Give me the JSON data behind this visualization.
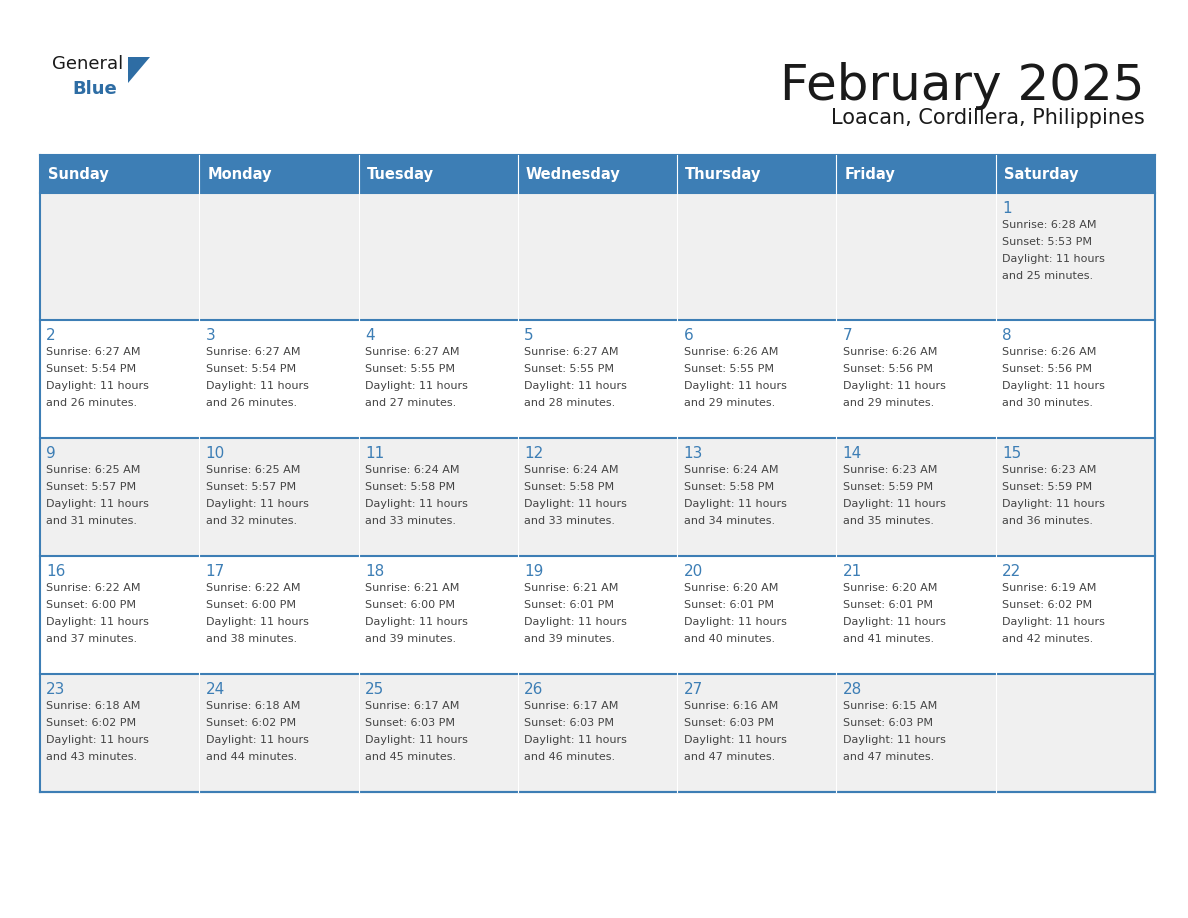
{
  "title": "February 2025",
  "subtitle": "Loacan, Cordillera, Philippines",
  "header_bg": "#3D7EB5",
  "header_text_color": "#FFFFFF",
  "cell_bg_even": "#F0F0F0",
  "cell_bg_odd": "#FFFFFF",
  "border_color": "#3D7EB5",
  "text_color": "#444444",
  "day_number_color": "#3D7EB5",
  "days_of_week": [
    "Sunday",
    "Monday",
    "Tuesday",
    "Wednesday",
    "Thursday",
    "Friday",
    "Saturday"
  ],
  "calendar_data": [
    [
      null,
      null,
      null,
      null,
      null,
      null,
      {
        "day": 1,
        "sunrise": "6:28 AM",
        "sunset": "5:53 PM",
        "daylight_hours": 11,
        "daylight_minutes": 25
      }
    ],
    [
      {
        "day": 2,
        "sunrise": "6:27 AM",
        "sunset": "5:54 PM",
        "daylight_hours": 11,
        "daylight_minutes": 26
      },
      {
        "day": 3,
        "sunrise": "6:27 AM",
        "sunset": "5:54 PM",
        "daylight_hours": 11,
        "daylight_minutes": 26
      },
      {
        "day": 4,
        "sunrise": "6:27 AM",
        "sunset": "5:55 PM",
        "daylight_hours": 11,
        "daylight_minutes": 27
      },
      {
        "day": 5,
        "sunrise": "6:27 AM",
        "sunset": "5:55 PM",
        "daylight_hours": 11,
        "daylight_minutes": 28
      },
      {
        "day": 6,
        "sunrise": "6:26 AM",
        "sunset": "5:55 PM",
        "daylight_hours": 11,
        "daylight_minutes": 29
      },
      {
        "day": 7,
        "sunrise": "6:26 AM",
        "sunset": "5:56 PM",
        "daylight_hours": 11,
        "daylight_minutes": 29
      },
      {
        "day": 8,
        "sunrise": "6:26 AM",
        "sunset": "5:56 PM",
        "daylight_hours": 11,
        "daylight_minutes": 30
      }
    ],
    [
      {
        "day": 9,
        "sunrise": "6:25 AM",
        "sunset": "5:57 PM",
        "daylight_hours": 11,
        "daylight_minutes": 31
      },
      {
        "day": 10,
        "sunrise": "6:25 AM",
        "sunset": "5:57 PM",
        "daylight_hours": 11,
        "daylight_minutes": 32
      },
      {
        "day": 11,
        "sunrise": "6:24 AM",
        "sunset": "5:58 PM",
        "daylight_hours": 11,
        "daylight_minutes": 33
      },
      {
        "day": 12,
        "sunrise": "6:24 AM",
        "sunset": "5:58 PM",
        "daylight_hours": 11,
        "daylight_minutes": 33
      },
      {
        "day": 13,
        "sunrise": "6:24 AM",
        "sunset": "5:58 PM",
        "daylight_hours": 11,
        "daylight_minutes": 34
      },
      {
        "day": 14,
        "sunrise": "6:23 AM",
        "sunset": "5:59 PM",
        "daylight_hours": 11,
        "daylight_minutes": 35
      },
      {
        "day": 15,
        "sunrise": "6:23 AM",
        "sunset": "5:59 PM",
        "daylight_hours": 11,
        "daylight_minutes": 36
      }
    ],
    [
      {
        "day": 16,
        "sunrise": "6:22 AM",
        "sunset": "6:00 PM",
        "daylight_hours": 11,
        "daylight_minutes": 37
      },
      {
        "day": 17,
        "sunrise": "6:22 AM",
        "sunset": "6:00 PM",
        "daylight_hours": 11,
        "daylight_minutes": 38
      },
      {
        "day": 18,
        "sunrise": "6:21 AM",
        "sunset": "6:00 PM",
        "daylight_hours": 11,
        "daylight_minutes": 39
      },
      {
        "day": 19,
        "sunrise": "6:21 AM",
        "sunset": "6:01 PM",
        "daylight_hours": 11,
        "daylight_minutes": 39
      },
      {
        "day": 20,
        "sunrise": "6:20 AM",
        "sunset": "6:01 PM",
        "daylight_hours": 11,
        "daylight_minutes": 40
      },
      {
        "day": 21,
        "sunrise": "6:20 AM",
        "sunset": "6:01 PM",
        "daylight_hours": 11,
        "daylight_minutes": 41
      },
      {
        "day": 22,
        "sunrise": "6:19 AM",
        "sunset": "6:02 PM",
        "daylight_hours": 11,
        "daylight_minutes": 42
      }
    ],
    [
      {
        "day": 23,
        "sunrise": "6:18 AM",
        "sunset": "6:02 PM",
        "daylight_hours": 11,
        "daylight_minutes": 43
      },
      {
        "day": 24,
        "sunrise": "6:18 AM",
        "sunset": "6:02 PM",
        "daylight_hours": 11,
        "daylight_minutes": 44
      },
      {
        "day": 25,
        "sunrise": "6:17 AM",
        "sunset": "6:03 PM",
        "daylight_hours": 11,
        "daylight_minutes": 45
      },
      {
        "day": 26,
        "sunrise": "6:17 AM",
        "sunset": "6:03 PM",
        "daylight_hours": 11,
        "daylight_minutes": 46
      },
      {
        "day": 27,
        "sunrise": "6:16 AM",
        "sunset": "6:03 PM",
        "daylight_hours": 11,
        "daylight_minutes": 47
      },
      {
        "day": 28,
        "sunrise": "6:15 AM",
        "sunset": "6:03 PM",
        "daylight_hours": 11,
        "daylight_minutes": 47
      },
      null
    ]
  ],
  "logo_general_color": "#1A1A1A",
  "logo_blue_color": "#2E6DA4",
  "logo_triangle_color": "#2E6DA4"
}
